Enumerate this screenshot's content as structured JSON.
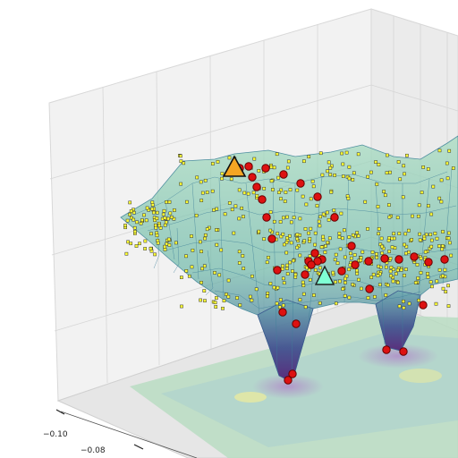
{
  "chart_data": {
    "type": "scatter",
    "subtype": "3d-surface-with-scatter",
    "title": "",
    "xlabel": "",
    "ylabel": "",
    "zlabel": "",
    "grid": true,
    "x_tick_labels": [
      "−0.10",
      "−0.08"
    ],
    "surface": {
      "colormap": "viridis",
      "wireframe": true,
      "floor_contour": true,
      "minima": [
        {
          "name": "left-well"
        },
        {
          "name": "right-well"
        }
      ]
    },
    "markers": {
      "start": {
        "shape": "triangle",
        "color": "#f5a623"
      },
      "end": {
        "shape": "triangle",
        "color": "#7fffd4"
      }
    },
    "series": [
      {
        "kind": "samples",
        "color": "#ffff33",
        "edge": "#333333"
      },
      {
        "kind": "trajectory",
        "color": "#dd1111",
        "edge": "#660000"
      }
    ]
  }
}
